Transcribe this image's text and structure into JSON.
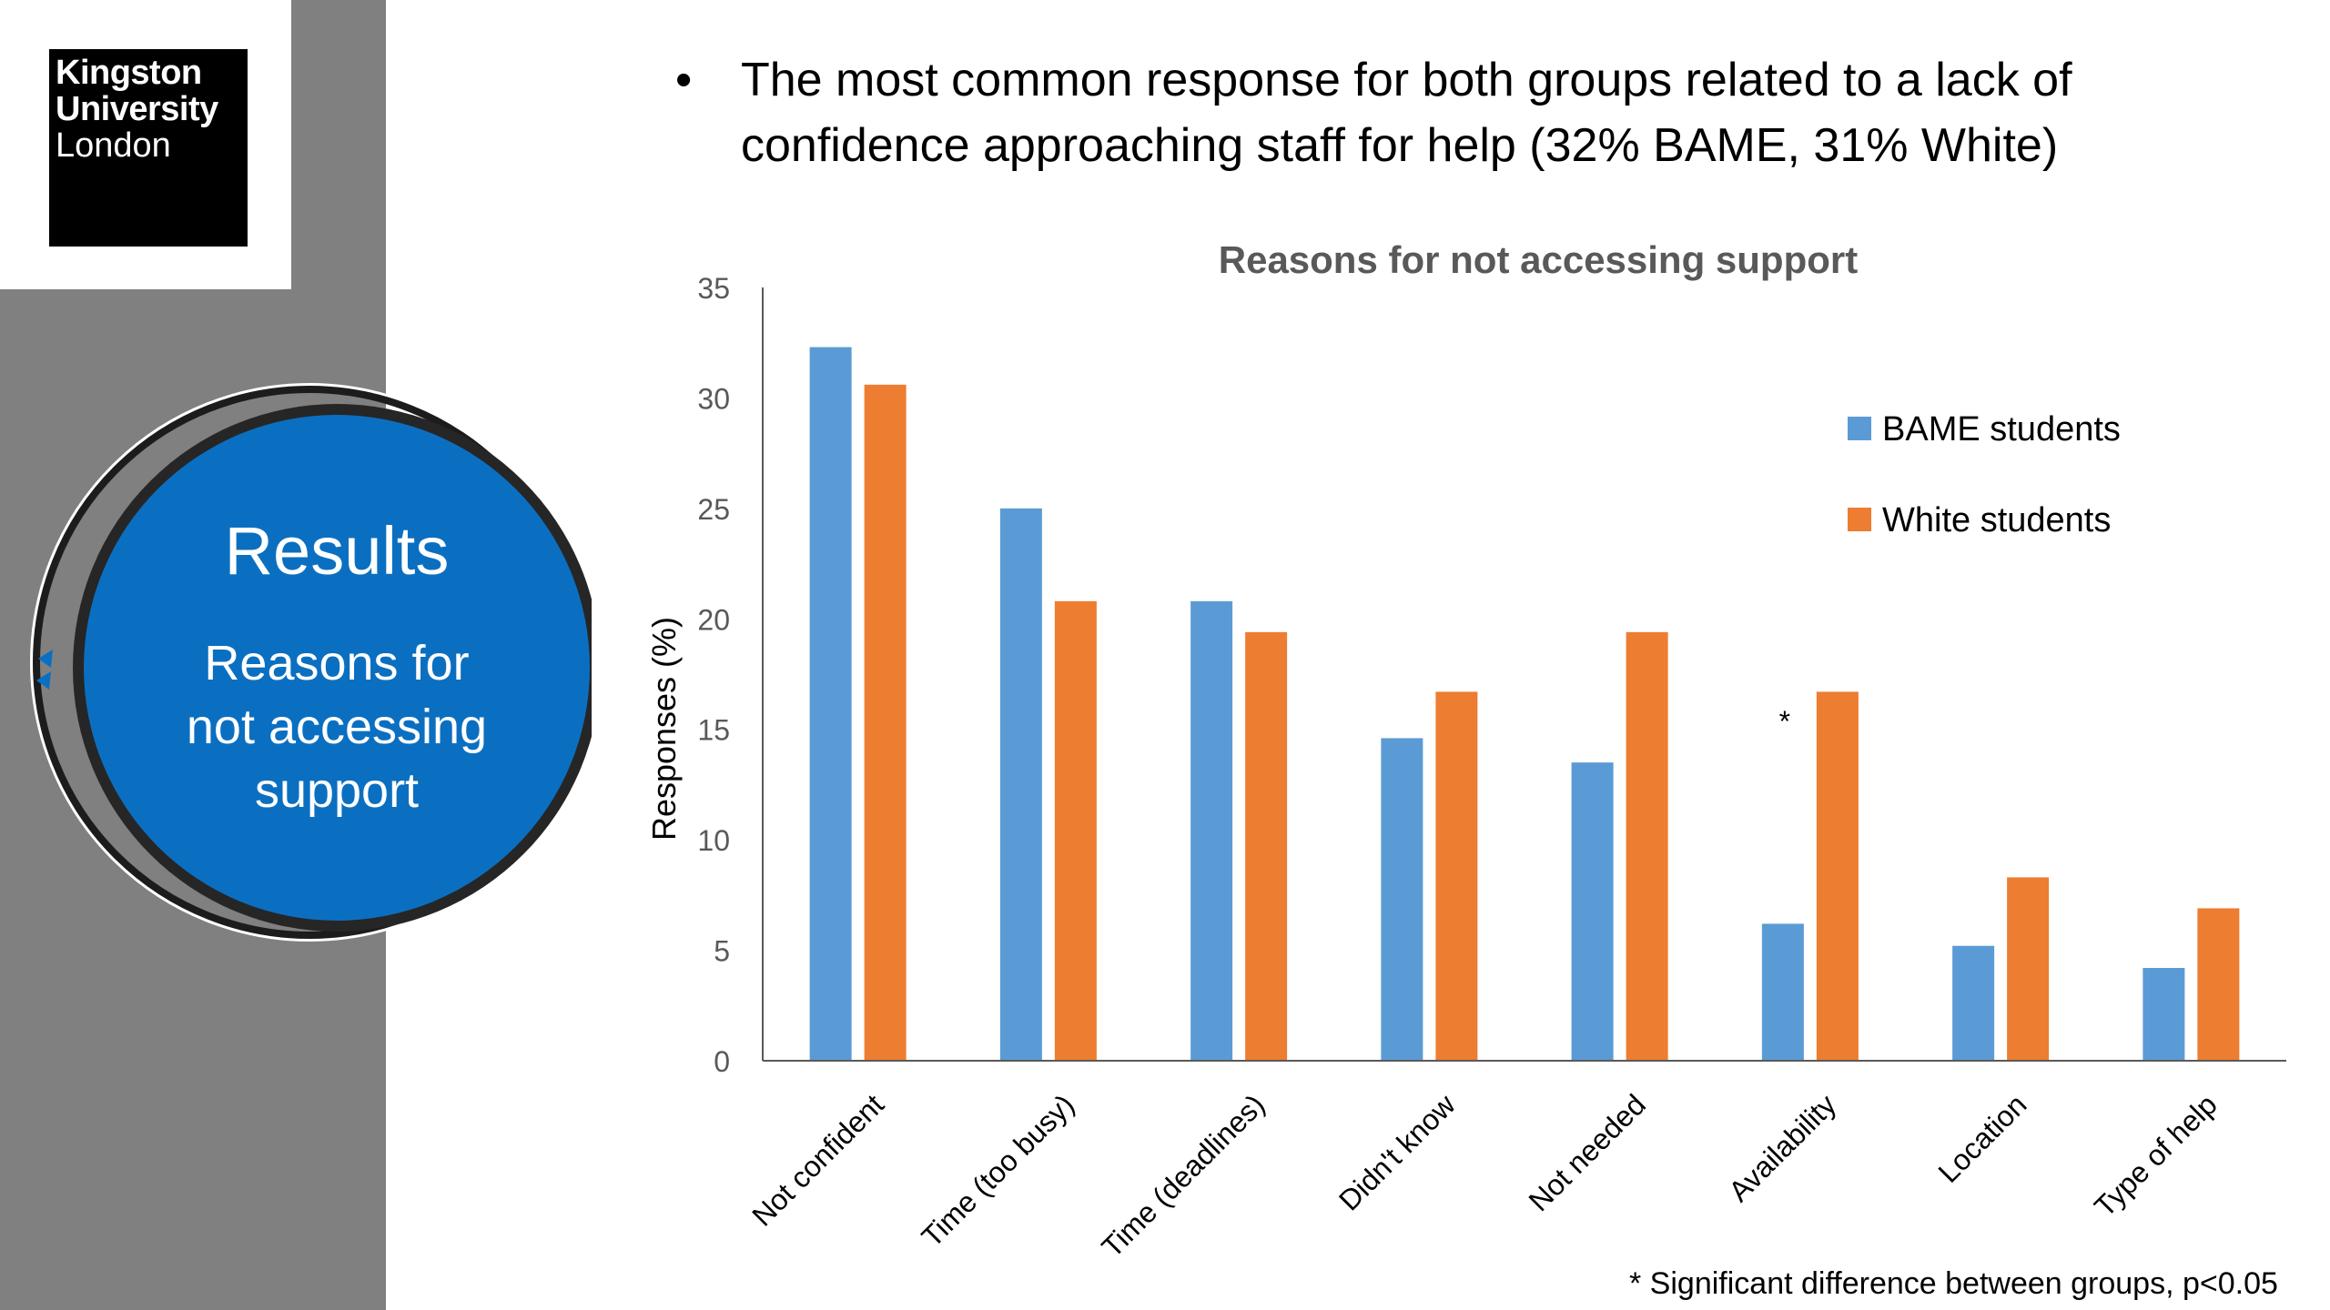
{
  "logo": {
    "line1": "Kingston",
    "line2": "University",
    "line3": "London"
  },
  "section": {
    "title": "Results",
    "subtitle": "Reasons for not accessing support"
  },
  "bullet": {
    "text": "The most common response for both groups related to a lack of confidence approaching staff for help (32% BAME, 31% White)"
  },
  "footnote": "* Significant difference between groups,  p<0.05",
  "colors": {
    "bame": "#5B9BD5",
    "white": "#ED7D31",
    "circle": "#0B6FC1",
    "sidebar": "#808080"
  },
  "chart_data": {
    "type": "bar",
    "title": "Reasons for not accessing support",
    "ylabel": "Responses (%)",
    "xlabel": "",
    "ylim": [
      0,
      35
    ],
    "yticks": [
      0,
      5,
      10,
      15,
      20,
      25,
      30,
      35
    ],
    "categories": [
      "Not confident",
      "Time (too busy)",
      "Time (deadlines)",
      "Didn't know",
      "Not needed",
      "Availability",
      "Location",
      "Type of help"
    ],
    "series": [
      {
        "name": "BAME students",
        "values": [
          32.3,
          25.0,
          20.8,
          14.6,
          13.5,
          6.2,
          5.2,
          4.2
        ],
        "color": "#5B9BD5"
      },
      {
        "name": "White students",
        "values": [
          30.6,
          20.8,
          19.4,
          16.7,
          19.4,
          16.7,
          8.3,
          6.9
        ],
        "color": "#ED7D31"
      }
    ],
    "legend_position": "right",
    "grid": false,
    "annotations": [
      {
        "category": "Availability",
        "text": "*"
      }
    ]
  }
}
